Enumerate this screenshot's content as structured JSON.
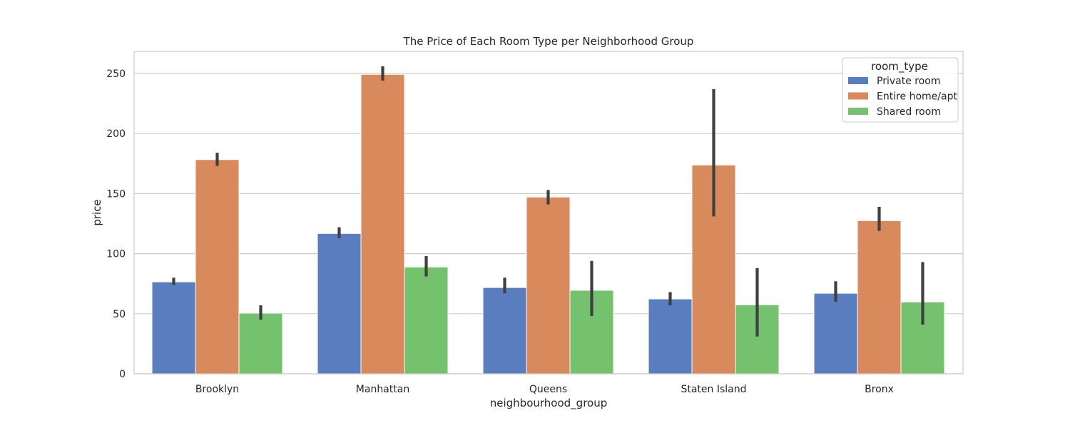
{
  "chart_data": {
    "type": "bar",
    "title": "The Price of Each Room Type per Neighborhood Group",
    "xlabel": "neighbourhood_group",
    "ylabel": "price",
    "ylim": [
      0,
      270
    ],
    "yticks": [
      0,
      50,
      100,
      150,
      200,
      250
    ],
    "grid": true,
    "categories": [
      "Brooklyn",
      "Manhattan",
      "Queens",
      "Staten Island",
      "Bronx"
    ],
    "legend": {
      "title": "room_type",
      "placement": "top-right"
    },
    "series": [
      {
        "name": "Private room",
        "color": "#5a7dc0",
        "values": [
          76.5,
          116.8,
          71.8,
          62.3,
          67.0
        ],
        "ci_low": [
          74,
          113,
          67,
          57,
          60
        ],
        "ci_high": [
          80,
          122,
          80,
          68,
          77
        ]
      },
      {
        "name": "Entire home/apt",
        "color": "#d98a5c",
        "values": [
          178.3,
          249.2,
          147.1,
          173.8,
          127.5
        ],
        "ci_low": [
          173,
          244,
          141,
          131,
          119
        ],
        "ci_high": [
          184,
          256,
          153,
          237,
          139
        ]
      },
      {
        "name": "Shared room",
        "color": "#75c26e",
        "values": [
          50.5,
          88.9,
          69.5,
          57.4,
          59.8
        ],
        "ci_low": [
          45,
          81,
          48,
          31,
          41
        ],
        "ci_high": [
          57,
          98,
          94,
          88,
          93
        ]
      }
    ]
  }
}
